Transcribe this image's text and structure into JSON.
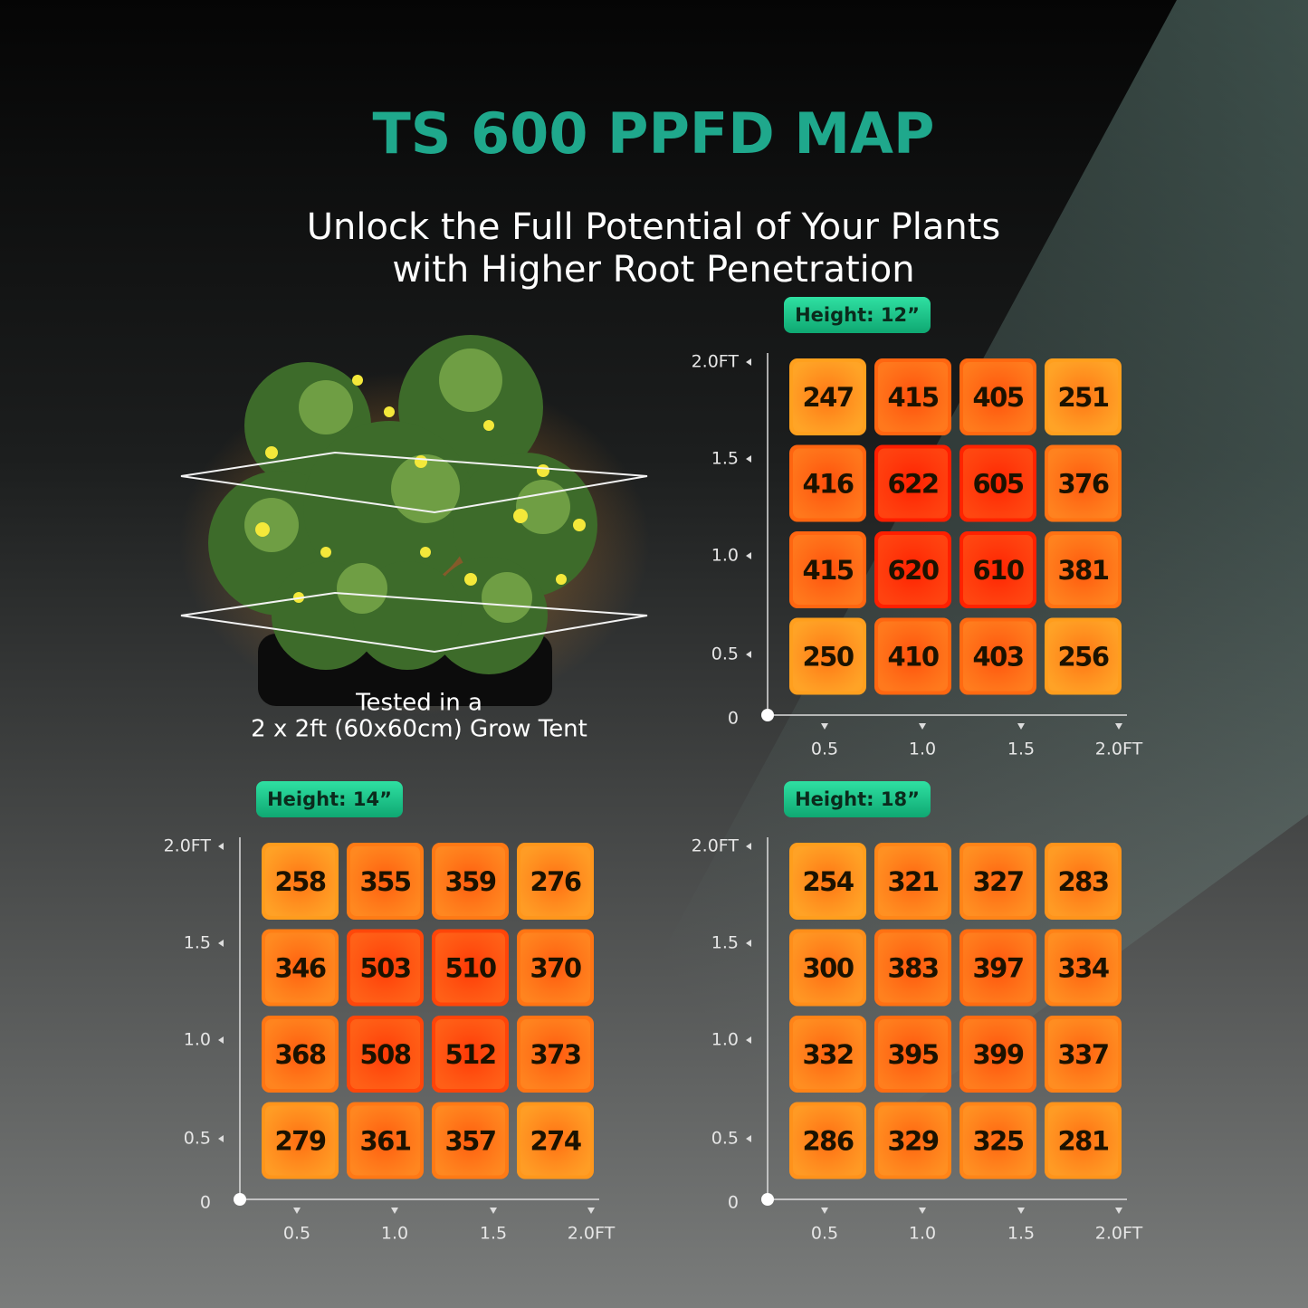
{
  "title": "TS 600 PPFD MAP",
  "subtitle": [
    "Unlock the Full Potential of Your Plants",
    "with Higher Root Penetration"
  ],
  "plant_caption": [
    "Tested in a",
    "2 x 2ft (60x60cm) Grow Tent"
  ],
  "maps": [
    {
      "height_label": "Height: 12”",
      "y_ticks": [
        "2.0FT",
        "1.5",
        "1.0",
        "0.5"
      ],
      "origin": "0",
      "x_ticks": [
        "0.5",
        "1.0",
        "1.5",
        "2.0FT"
      ],
      "rows": [
        [
          247,
          415,
          405,
          251
        ],
        [
          416,
          622,
          605,
          376
        ],
        [
          415,
          620,
          610,
          381
        ],
        [
          250,
          410,
          403,
          256
        ]
      ]
    },
    {
      "height_label": "Height: 14”",
      "y_ticks": [
        "2.0FT",
        "1.5",
        "1.0",
        "0.5"
      ],
      "origin": "0",
      "x_ticks": [
        "0.5",
        "1.0",
        "1.5",
        "2.0FT"
      ],
      "rows": [
        [
          258,
          355,
          359,
          276
        ],
        [
          346,
          503,
          510,
          370
        ],
        [
          368,
          508,
          512,
          373
        ],
        [
          279,
          361,
          357,
          274
        ]
      ]
    },
    {
      "height_label": "Height: 18”",
      "y_ticks": [
        "2.0FT",
        "1.5",
        "1.0",
        "0.5"
      ],
      "origin": "0",
      "x_ticks": [
        "0.5",
        "1.0",
        "1.5",
        "2.0FT"
      ],
      "rows": [
        [
          254,
          321,
          327,
          283
        ],
        [
          300,
          383,
          397,
          334
        ],
        [
          332,
          395,
          399,
          337
        ],
        [
          286,
          329,
          325,
          281
        ]
      ]
    }
  ]
}
